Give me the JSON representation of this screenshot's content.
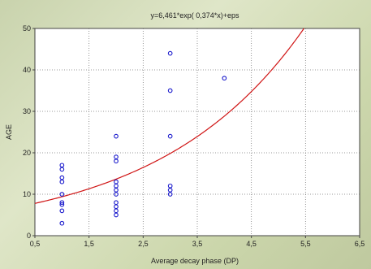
{
  "chart_data": {
    "type": "scatter",
    "title": "y=6,461*exp( 0,374*x)+eps",
    "xlabel": "Average decay phase (DP)",
    "ylabel": "AGE",
    "xlim": [
      0.5,
      6.5
    ],
    "ylim": [
      0,
      50
    ],
    "x_ticks": [
      0.5,
      1.5,
      2.5,
      3.5,
      4.5,
      5.5,
      6.5
    ],
    "x_tick_labels": [
      "0,5",
      "1,5",
      "2,5",
      "3,5",
      "4,5",
      "5,5",
      "6,5"
    ],
    "y_ticks": [
      0,
      10,
      20,
      30,
      40,
      50
    ],
    "y_tick_labels": [
      "0",
      "10",
      "20",
      "30",
      "40",
      "50"
    ],
    "grid": true,
    "points": [
      {
        "x": 1,
        "y": 17
      },
      {
        "x": 1,
        "y": 16
      },
      {
        "x": 1,
        "y": 14
      },
      {
        "x": 1,
        "y": 13
      },
      {
        "x": 1,
        "y": 10
      },
      {
        "x": 1,
        "y": 8
      },
      {
        "x": 1,
        "y": 7.5
      },
      {
        "x": 1,
        "y": 6
      },
      {
        "x": 1,
        "y": 3
      },
      {
        "x": 2,
        "y": 24
      },
      {
        "x": 2,
        "y": 19
      },
      {
        "x": 2,
        "y": 18
      },
      {
        "x": 2,
        "y": 13
      },
      {
        "x": 2,
        "y": 12
      },
      {
        "x": 2,
        "y": 11
      },
      {
        "x": 2,
        "y": 10
      },
      {
        "x": 2,
        "y": 8
      },
      {
        "x": 2,
        "y": 7
      },
      {
        "x": 2,
        "y": 6
      },
      {
        "x": 2,
        "y": 5
      },
      {
        "x": 3,
        "y": 44
      },
      {
        "x": 3,
        "y": 35
      },
      {
        "x": 3,
        "y": 24
      },
      {
        "x": 3,
        "y": 12
      },
      {
        "x": 3,
        "y": 11
      },
      {
        "x": 3,
        "y": 10
      },
      {
        "x": 4,
        "y": 38
      }
    ],
    "fit": {
      "a": 6.461,
      "b": 0.374
    },
    "point_color": "#1a1acc",
    "curve_color": "#d01515"
  }
}
